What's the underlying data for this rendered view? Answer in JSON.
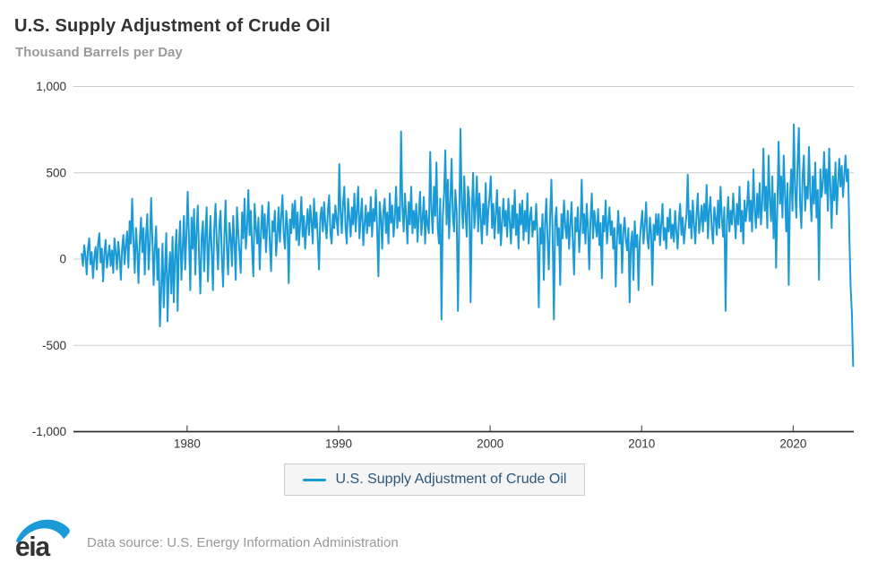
{
  "header": {
    "title": "U.S. Supply Adjustment of Crude Oil",
    "subtitle": "Thousand Barrels per Day"
  },
  "legend": {
    "label": "U.S. Supply Adjustment of Crude Oil"
  },
  "footer": {
    "logo_text": "eia",
    "source_text": "Data source: U.S. Energy Information Administration"
  },
  "colors": {
    "line": "#1a9bd7",
    "legend_text": "#29587c",
    "grid": "#cccccc",
    "axis": "#333333",
    "tick_text": "#333333",
    "muted": "#999999"
  },
  "chart_data": {
    "type": "line",
    "title": "U.S. Supply Adjustment of Crude Oil",
    "ylabel": "Thousand Barrels per Day",
    "series_name": "U.S. Supply Adjustment of Crude Oil",
    "frequency": "monthly",
    "start_year": 1973,
    "end_year": 2023,
    "ylim": [
      -1000,
      1000
    ],
    "yticks": [
      1000,
      500,
      0,
      -500,
      -1000
    ],
    "ytick_labels": [
      "1,000",
      "500",
      "0",
      "-500",
      "-1,000"
    ],
    "xticks": [
      1980,
      1990,
      2000,
      2010,
      2020
    ],
    "xtick_labels": [
      "1980",
      "1990",
      "2000",
      "2010",
      "2020"
    ],
    "xlim": [
      1972.5,
      2024.0
    ],
    "grid": true,
    "legend_position": "bottom",
    "values": [
      30,
      -40,
      80,
      20,
      -90,
      60,
      120,
      -30,
      40,
      -110,
      10,
      70,
      -60,
      90,
      150,
      -20,
      60,
      -130,
      30,
      110,
      -50,
      20,
      80,
      -40,
      50,
      -80,
      120,
      40,
      -60,
      100,
      20,
      -120,
      60,
      140,
      -30,
      80,
      160,
      -50,
      220,
      90,
      350,
      120,
      -80,
      180,
      60,
      -140,
      100,
      240,
      40,
      180,
      -90,
      130,
      260,
      -60,
      90,
      355,
      110,
      -150,
      70,
      190,
      -120,
      60,
      -390,
      -180,
      90,
      -280,
      -60,
      150,
      -360,
      -90,
      40,
      -200,
      130,
      -250,
      30,
      170,
      -300,
      80,
      220,
      -120,
      60,
      250,
      -60,
      140,
      390,
      110,
      -180,
      240,
      60,
      290,
      -90,
      160,
      310,
      20,
      -200,
      130,
      220,
      -70,
      150,
      300,
      -130,
      80,
      250,
      40,
      -180,
      170,
      320,
      90,
      -60,
      190,
      280,
      20,
      -160,
      120,
      340,
      70,
      -90,
      210,
      130,
      -40,
      250,
      90,
      -120,
      300,
      160,
      40,
      -80,
      270,
      120,
      350,
      60,
      180,
      400,
      140,
      280,
      60,
      -100,
      320,
      180,
      90,
      240,
      -60,
      150,
      310,
      120,
      260,
      40,
      190,
      330,
      90,
      -70,
      220,
      160,
      280,
      20,
      140,
      300,
      100,
      240,
      370,
      140,
      60,
      280,
      190,
      -140,
      230,
      150,
      320,
      180,
      340,
      110,
      270,
      80,
      200,
      360,
      130,
      250,
      60,
      190,
      290,
      140,
      310,
      220,
      90,
      350,
      180,
      270,
      120,
      -60,
      240,
      300,
      160,
      330,
      200,
      120,
      280,
      370,
      150,
      90,
      260,
      180,
      310,
      220,
      140,
      550,
      280,
      150,
      320,
      420,
      180,
      90,
      350,
      240,
      130,
      300,
      200,
      380,
      160,
      280,
      420,
      120,
      240,
      350,
      80,
      200,
      310,
      150,
      270,
      190,
      360,
      130,
      290,
      220,
      400,
      170,
      -100,
      330,
      250,
      60,
      280,
      350,
      150,
      270,
      90,
      380,
      210,
      310,
      130,
      240,
      420,
      180,
      300,
      220,
      740,
      310,
      160,
      380,
      250,
      90,
      330,
      200,
      420,
      150,
      280,
      180,
      320,
      100,
      260,
      390,
      140,
      230,
      360,
      90,
      280,
      200,
      150,
      620,
      280,
      150,
      420,
      250,
      560,
      180,
      90,
      350,
      -350,
      240,
      380,
      630,
      200,
      460,
      120,
      340,
      580,
      240,
      160,
      400,
      280,
      -300,
      220,
      755,
      320,
      180,
      480,
      260,
      130,
      420,
      350,
      -250,
      280,
      500,
      180,
      300,
      480,
      160,
      380,
      240,
      90,
      320,
      200,
      440,
      140,
      280,
      360,
      480,
      180,
      320,
      120,
      260,
      400,
      150,
      300,
      80,
      220,
      350,
      190,
      280,
      130,
      350,
      220,
      90,
      310,
      180,
      400,
      140,
      260,
      60,
      320,
      200,
      340,
      110,
      280,
      160,
      380,
      90,
      240,
      300,
      130,
      220,
      170,
      320,
      140,
      -280,
      180,
      90,
      260,
      -120,
      200,
      350,
      110,
      -60,
      240,
      460,
      130,
      -350,
      220,
      300,
      80,
      180,
      -150,
      260,
      120,
      340,
      190,
      120,
      280,
      60,
      200,
      330,
      100,
      -90,
      240,
      160,
      300,
      40,
      180,
      460,
      150,
      260,
      90,
      320,
      180,
      -60,
      220,
      380,
      120,
      280,
      200,
      130,
      290,
      80,
      210,
      -110,
      250,
      160,
      340,
      90,
      200,
      300,
      140,
      220,
      60,
      180,
      -160,
      120,
      280,
      90,
      200,
      -80,
      160,
      240,
      110,
      50,
      180,
      -250,
      90,
      160,
      -120,
      220,
      70,
      140,
      -180,
      100,
      200,
      280,
      90,
      190,
      330,
      120,
      60,
      240,
      150,
      -150,
      200,
      110,
      260,
      140,
      260,
      80,
      200,
      320,
      110,
      180,
      60,
      240,
      160,
      290,
      120,
      200,
      100,
      280,
      160,
      60,
      220,
      320,
      140,
      240,
      90,
      180,
      260,
      490,
      180,
      280,
      120,
      340,
      200,
      90,
      260,
      380,
      150,
      220,
      310,
      160,
      320,
      220,
      430,
      120,
      280,
      360,
      180,
      90,
      300,
      240,
      140,
      340,
      180,
      420,
      240,
      130,
      300,
      -300,
      220,
      360,
      160,
      280,
      200,
      380,
      240,
      120,
      320,
      200,
      420,
      160,
      280,
      90,
      340,
      220,
      300,
      450,
      220,
      340,
      160,
      520,
      280,
      180,
      380,
      240,
      440,
      200,
      320,
      640,
      280,
      420,
      180,
      600,
      340,
      220,
      480,
      120,
      380,
      -50,
      300,
      680,
      320,
      480,
      240,
      600,
      380,
      160,
      440,
      -150,
      360,
      520,
      280,
      780,
      400,
      240,
      560,
      760,
      320,
      180,
      480,
      600,
      280,
      420,
      350,
      650,
      380,
      220,
      480,
      320,
      560,
      240,
      400,
      -120,
      520,
      360,
      440,
      620,
      380,
      520,
      280,
      640,
      420,
      180,
      480,
      340,
      560,
      260,
      430,
      580,
      420,
      540,
      360,
      480,
      600,
      450,
      520,
      130,
      -160,
      -310,
      -620
    ]
  }
}
